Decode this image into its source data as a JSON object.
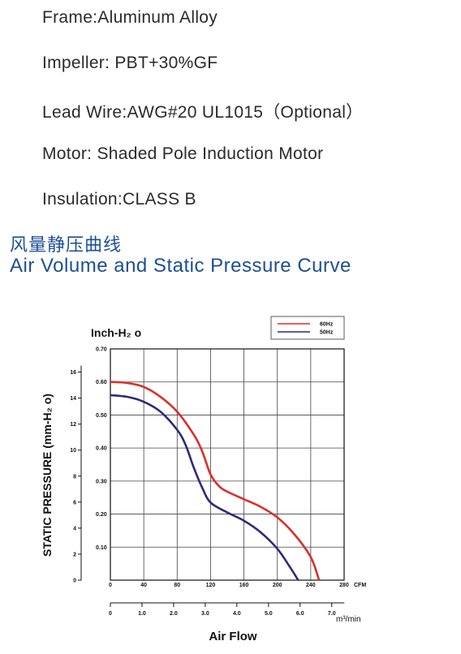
{
  "specs": [
    "Frame:Aluminum Alloy",
    "Impeller: PBT+30%GF",
    "Lead Wire:AWG#20 UL1015（Optional）",
    "Motor: Shaded Pole Induction Motor",
    "Insulation:CLASS B"
  ],
  "section": {
    "title_cn": "风量静压曲线",
    "title_en": "Air Volume and Static Pressure Curve"
  },
  "colors": {
    "accent": "#1d4f96",
    "series_60": "#d9302c",
    "series_50": "#2e2a7a"
  },
  "chart_data": {
    "type": "line",
    "inner_axis_label": "Inch-H₂ o",
    "ylabel": "STATIC PRESSURE (mm-H₂ o)",
    "xlabel": "Air Flow",
    "x_unit_cfm": "CFM",
    "x_unit_m3": "m³/min",
    "xlim": [
      0,
      280
    ],
    "ylim_inch": [
      0,
      0.7
    ],
    "ylim_mm": [
      0,
      17.78
    ],
    "x_ticks_cfm": [
      0,
      40,
      80,
      120,
      160,
      200,
      240,
      280
    ],
    "x_ticks_cfm_labels": [
      "0",
      "40",
      "80",
      "120",
      "160",
      "200",
      "240",
      "280"
    ],
    "x_ticks_m3": [
      0,
      1.0,
      2.0,
      3.0,
      4.0,
      5.0,
      6.0,
      7.0
    ],
    "x_ticks_m3_labels": [
      "0",
      "1.0",
      "2.0",
      "3.0",
      "4.0",
      "5.0",
      "6.0",
      "7.0"
    ],
    "y_ticks_inch": [
      0.1,
      0.2,
      0.3,
      0.4,
      0.5,
      0.6,
      0.7
    ],
    "y_ticks_inch_labels": [
      "0.10",
      "0.20",
      "0.30",
      "0.40",
      "0.50",
      "0.60",
      "0.70"
    ],
    "y_ticks_mm": [
      0,
      2,
      4,
      6,
      8,
      10,
      12,
      14,
      16
    ],
    "y_ticks_mm_labels": [
      "0",
      "2",
      "4",
      "6",
      "8",
      "10",
      "12",
      "14",
      "16"
    ],
    "grid": true,
    "legend_position": "top-right",
    "series": [
      {
        "name": "60Hz",
        "color": "#d9302c",
        "points": [
          [
            0,
            0.6
          ],
          [
            20,
            0.597
          ],
          [
            40,
            0.585
          ],
          [
            60,
            0.555
          ],
          [
            80,
            0.51
          ],
          [
            100,
            0.44
          ],
          [
            110,
            0.39
          ],
          [
            120,
            0.32
          ],
          [
            130,
            0.285
          ],
          [
            140,
            0.268
          ],
          [
            160,
            0.245
          ],
          [
            180,
            0.222
          ],
          [
            200,
            0.19
          ],
          [
            220,
            0.14
          ],
          [
            240,
            0.07
          ],
          [
            250,
            0.0
          ]
        ]
      },
      {
        "name": "50Hz",
        "color": "#2e2a7a",
        "points": [
          [
            0,
            0.56
          ],
          [
            20,
            0.555
          ],
          [
            40,
            0.54
          ],
          [
            60,
            0.51
          ],
          [
            80,
            0.455
          ],
          [
            90,
            0.41
          ],
          [
            100,
            0.34
          ],
          [
            110,
            0.28
          ],
          [
            120,
            0.235
          ],
          [
            140,
            0.205
          ],
          [
            160,
            0.18
          ],
          [
            180,
            0.145
          ],
          [
            200,
            0.095
          ],
          [
            215,
            0.04
          ],
          [
            225,
            0.0
          ]
        ]
      }
    ]
  }
}
